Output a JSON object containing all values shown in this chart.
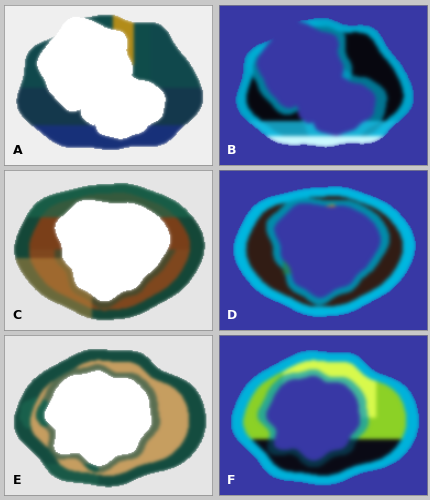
{
  "figsize": [
    4.31,
    5.0
  ],
  "dpi": 100,
  "nrows": 3,
  "ncols": 2,
  "labels": [
    "A",
    "B",
    "C",
    "D",
    "E",
    "F"
  ],
  "bg_left": "#f0f0f0",
  "bg_right": "#3a3aaa",
  "label_colors": [
    "#000000",
    "#ffffff",
    "#000000",
    "#ffffff",
    "#000000",
    "#ffffff"
  ],
  "fig_bg": "#c8c8c8",
  "hspace": 0.03,
  "wspace": 0.03
}
